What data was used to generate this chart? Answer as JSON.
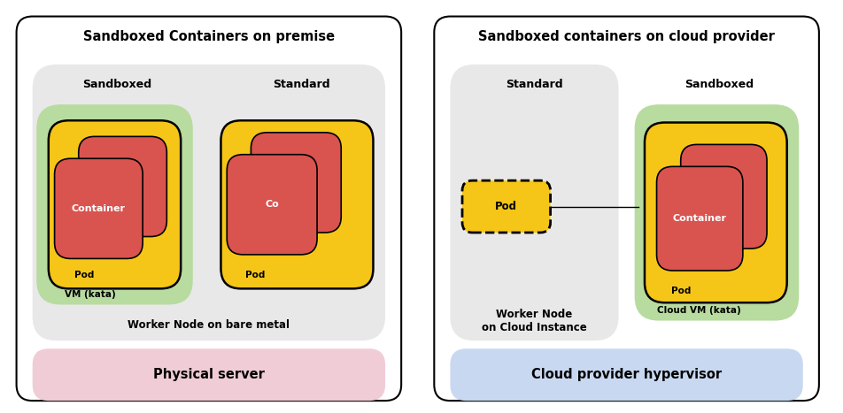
{
  "left_title": "Sandboxed Containers on premise",
  "right_title": "Sandboxed containers on cloud provider",
  "left_sub_sandboxed": "Sandboxed",
  "left_sub_standard": "Standard",
  "right_sub_standard": "Standard",
  "right_sub_sandboxed": "Sandboxed",
  "left_worker_label": "Worker Node on bare metal",
  "right_worker_label": "Worker Node\non Cloud Instance",
  "left_bottom_label": "Physical server",
  "right_bottom_label": "Cloud provider hypervisor",
  "vm_kata_label": "VM (kata)",
  "cloud_vm_kata_label": "Cloud VM (kata)",
  "pod_label": "Pod",
  "container_label": "Container",
  "co_label": "Co",
  "color_green": "#b8dba0",
  "color_yellow": "#f5c518",
  "color_red": "#d9534f",
  "color_gray_bg": "#e8e8e8",
  "color_pink_bg": "#f0ccd6",
  "color_blue_bg": "#c8d8f0",
  "color_white": "#ffffff",
  "color_black": "#000000"
}
